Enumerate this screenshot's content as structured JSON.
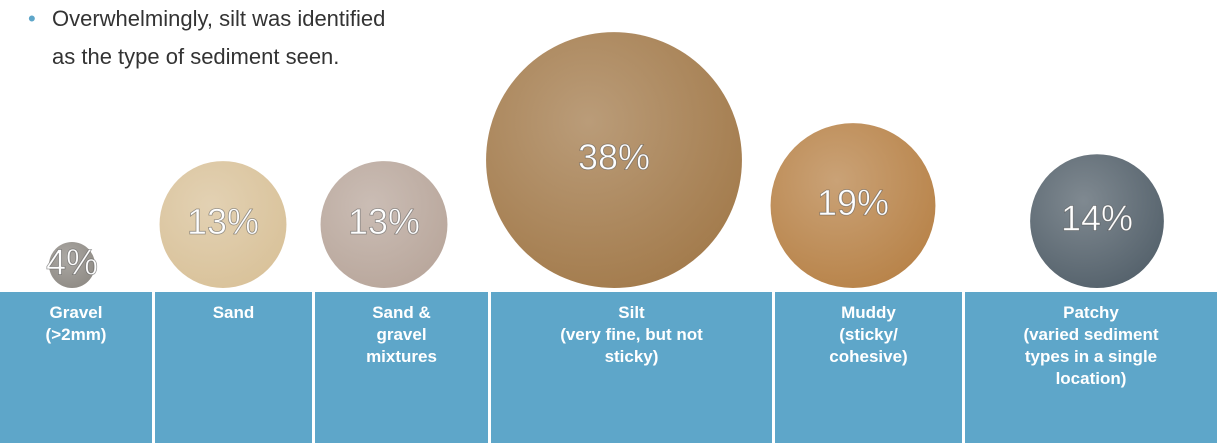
{
  "chart_data": {
    "type": "bubble",
    "annotations": [
      "Overwhelmingly, silt was identified\nas the type of sediment seen."
    ],
    "categories": [
      "Gravel\n(>2mm)",
      "Sand",
      "Sand &\ngravel\nmixtures",
      "Silt\n(very fine, but not\nsticky)",
      "Muddy\n(sticky/\ncohesive)",
      "Patchy\n(varied sediment\ntypes in a single\nlocation)"
    ],
    "values": [
      4,
      13,
      13,
      38,
      19,
      14
    ],
    "value_labels": [
      "4%",
      "13%",
      "13%",
      "38%",
      "19%",
      "14%"
    ],
    "colors": [
      "#8f8b85",
      "#d9c29a",
      "#b9a79c",
      "#a37b4c",
      "#b88349",
      "#55626c"
    ]
  }
}
